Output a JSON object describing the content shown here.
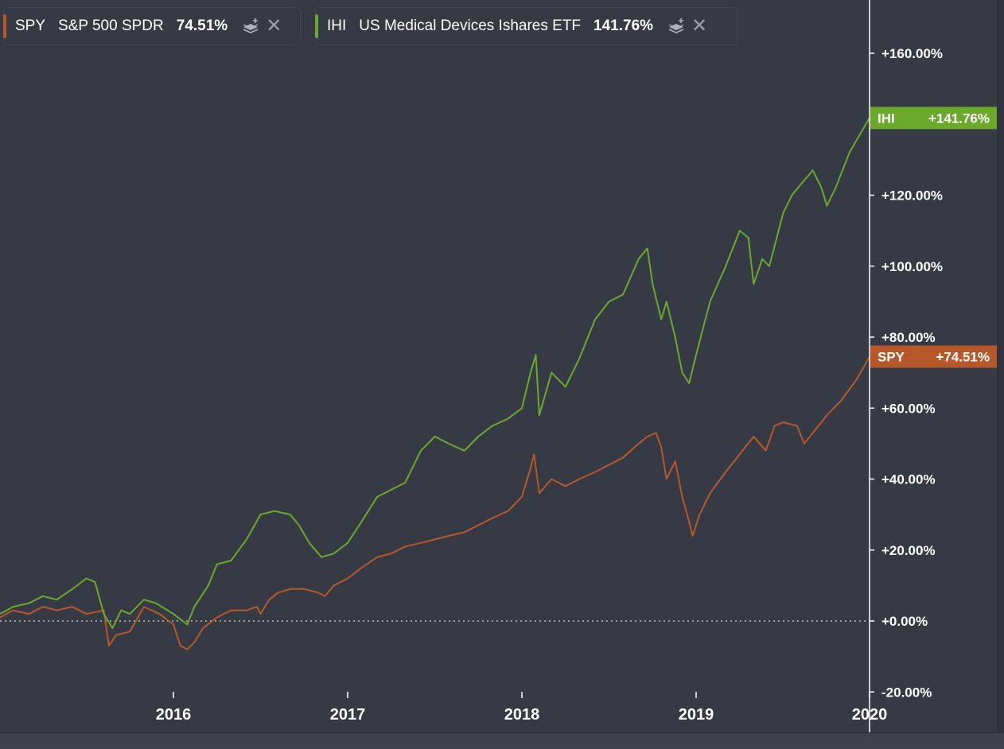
{
  "legend": [
    {
      "symbol": "SPY",
      "name": "S&P 500 SPDR",
      "pct": "74.51%",
      "color": "#b7582a"
    },
    {
      "symbol": "IHI",
      "name": "US Medical Devices Ishares ETF",
      "pct": "141.76%",
      "color": "#6ba92a"
    }
  ],
  "price_tags": [
    {
      "symbol": "IHI",
      "value": "+141.76%",
      "color": "#6ba92a"
    },
    {
      "symbol": "SPY",
      "value": "+74.51%",
      "color": "#b7582a"
    }
  ],
  "chart_data": {
    "type": "line",
    "title": "",
    "xlabel": "",
    "ylabel": "",
    "x_range": [
      2015.0,
      2020.0
    ],
    "ylim": [
      -20,
      175
    ],
    "y_ticks": [
      "+160.00%",
      "+120.00%",
      "+100.00%",
      "+80.00%",
      "+60.00%",
      "+40.00%",
      "+20.00%",
      "+0.00%",
      "-20.00%"
    ],
    "y_tick_values": [
      160,
      120,
      100,
      80,
      60,
      40,
      20,
      0,
      -20
    ],
    "x_ticks": [
      "2016",
      "2017",
      "2018",
      "2019",
      "2020"
    ],
    "x_tick_values": [
      2016,
      2017,
      2018,
      2019,
      2020
    ],
    "zero_line": "dotted",
    "series": [
      {
        "name": "SPY",
        "color": "#b7582a",
        "points": [
          [
            2015.0,
            1
          ],
          [
            2015.08,
            3
          ],
          [
            2015.17,
            2
          ],
          [
            2015.25,
            4
          ],
          [
            2015.33,
            3
          ],
          [
            2015.42,
            4
          ],
          [
            2015.5,
            2
          ],
          [
            2015.6,
            3
          ],
          [
            2015.63,
            -7
          ],
          [
            2015.67,
            -4
          ],
          [
            2015.75,
            -3
          ],
          [
            2015.83,
            4
          ],
          [
            2015.92,
            2
          ],
          [
            2016.0,
            -1
          ],
          [
            2016.04,
            -7
          ],
          [
            2016.08,
            -8
          ],
          [
            2016.12,
            -6
          ],
          [
            2016.17,
            -2
          ],
          [
            2016.25,
            1
          ],
          [
            2016.33,
            3
          ],
          [
            2016.42,
            3
          ],
          [
            2016.48,
            4
          ],
          [
            2016.5,
            2
          ],
          [
            2016.55,
            6
          ],
          [
            2016.6,
            8
          ],
          [
            2016.67,
            9
          ],
          [
            2016.75,
            9
          ],
          [
            2016.83,
            8
          ],
          [
            2016.87,
            7
          ],
          [
            2016.92,
            10
          ],
          [
            2017.0,
            12
          ],
          [
            2017.08,
            15
          ],
          [
            2017.17,
            18
          ],
          [
            2017.25,
            19
          ],
          [
            2017.33,
            21
          ],
          [
            2017.42,
            22
          ],
          [
            2017.5,
            23
          ],
          [
            2017.58,
            24
          ],
          [
            2017.67,
            25
          ],
          [
            2017.75,
            27
          ],
          [
            2017.83,
            29
          ],
          [
            2017.92,
            31
          ],
          [
            2018.0,
            35
          ],
          [
            2018.05,
            43
          ],
          [
            2018.07,
            47
          ],
          [
            2018.1,
            36
          ],
          [
            2018.17,
            40
          ],
          [
            2018.25,
            38
          ],
          [
            2018.33,
            40
          ],
          [
            2018.42,
            42
          ],
          [
            2018.5,
            44
          ],
          [
            2018.58,
            46
          ],
          [
            2018.67,
            50
          ],
          [
            2018.72,
            52
          ],
          [
            2018.77,
            53
          ],
          [
            2018.8,
            49
          ],
          [
            2018.83,
            40
          ],
          [
            2018.88,
            45
          ],
          [
            2018.92,
            35
          ],
          [
            2018.96,
            28
          ],
          [
            2018.98,
            24
          ],
          [
            2019.02,
            30
          ],
          [
            2019.08,
            36
          ],
          [
            2019.17,
            42
          ],
          [
            2019.25,
            47
          ],
          [
            2019.33,
            52
          ],
          [
            2019.4,
            48
          ],
          [
            2019.45,
            55
          ],
          [
            2019.5,
            56
          ],
          [
            2019.58,
            55
          ],
          [
            2019.62,
            50
          ],
          [
            2019.67,
            53
          ],
          [
            2019.75,
            58
          ],
          [
            2019.83,
            62
          ],
          [
            2019.92,
            68
          ],
          [
            2020.0,
            74.51
          ]
        ]
      },
      {
        "name": "IHI",
        "color": "#6ba92a",
        "points": [
          [
            2015.0,
            2
          ],
          [
            2015.08,
            4
          ],
          [
            2015.17,
            5
          ],
          [
            2015.25,
            7
          ],
          [
            2015.33,
            6
          ],
          [
            2015.42,
            9
          ],
          [
            2015.5,
            12
          ],
          [
            2015.55,
            11
          ],
          [
            2015.6,
            2
          ],
          [
            2015.65,
            -2
          ],
          [
            2015.7,
            3
          ],
          [
            2015.75,
            2
          ],
          [
            2015.83,
            6
          ],
          [
            2015.9,
            5
          ],
          [
            2016.0,
            2
          ],
          [
            2016.08,
            -1
          ],
          [
            2016.12,
            4
          ],
          [
            2016.2,
            10
          ],
          [
            2016.25,
            16
          ],
          [
            2016.33,
            17
          ],
          [
            2016.42,
            23
          ],
          [
            2016.5,
            30
          ],
          [
            2016.58,
            31
          ],
          [
            2016.67,
            30
          ],
          [
            2016.72,
            27
          ],
          [
            2016.78,
            22
          ],
          [
            2016.85,
            18
          ],
          [
            2016.92,
            19
          ],
          [
            2017.0,
            22
          ],
          [
            2017.08,
            28
          ],
          [
            2017.17,
            35
          ],
          [
            2017.25,
            37
          ],
          [
            2017.33,
            39
          ],
          [
            2017.42,
            48
          ],
          [
            2017.5,
            52
          ],
          [
            2017.58,
            50
          ],
          [
            2017.67,
            48
          ],
          [
            2017.75,
            52
          ],
          [
            2017.83,
            55
          ],
          [
            2017.92,
            57
          ],
          [
            2018.0,
            60
          ],
          [
            2018.05,
            70
          ],
          [
            2018.08,
            75
          ],
          [
            2018.1,
            58
          ],
          [
            2018.17,
            70
          ],
          [
            2018.25,
            66
          ],
          [
            2018.33,
            74
          ],
          [
            2018.42,
            85
          ],
          [
            2018.5,
            90
          ],
          [
            2018.58,
            92
          ],
          [
            2018.67,
            102
          ],
          [
            2018.72,
            105
          ],
          [
            2018.75,
            95
          ],
          [
            2018.8,
            85
          ],
          [
            2018.83,
            90
          ],
          [
            2018.88,
            80
          ],
          [
            2018.92,
            70
          ],
          [
            2018.96,
            67
          ],
          [
            2019.0,
            75
          ],
          [
            2019.08,
            90
          ],
          [
            2019.17,
            100
          ],
          [
            2019.25,
            110
          ],
          [
            2019.3,
            108
          ],
          [
            2019.33,
            95
          ],
          [
            2019.38,
            102
          ],
          [
            2019.42,
            100
          ],
          [
            2019.5,
            115
          ],
          [
            2019.55,
            120
          ],
          [
            2019.6,
            123
          ],
          [
            2019.67,
            127
          ],
          [
            2019.72,
            122
          ],
          [
            2019.75,
            117
          ],
          [
            2019.8,
            122
          ],
          [
            2019.88,
            132
          ],
          [
            2019.95,
            138
          ],
          [
            2020.0,
            141.76
          ]
        ]
      }
    ]
  }
}
